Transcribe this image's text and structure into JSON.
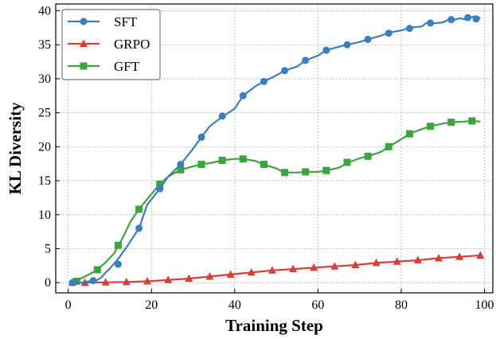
{
  "chart_data": {
    "type": "line",
    "title": "",
    "xlabel": "Training Step",
    "ylabel": "KL Diversity",
    "xlim": [
      -3,
      102
    ],
    "ylim": [
      -1.5,
      41
    ],
    "xticks": [
      0,
      20,
      40,
      60,
      80,
      100
    ],
    "yticks": [
      0,
      5,
      10,
      15,
      20,
      25,
      30,
      35,
      40
    ],
    "grid": true,
    "legend_position": "top-left",
    "series": [
      {
        "name": "SFT",
        "color": "#3a7ebf",
        "marker": "circle",
        "x": [
          1,
          2,
          3,
          4,
          5,
          6,
          7,
          8,
          9,
          10,
          12,
          14,
          17,
          19,
          22,
          24,
          27,
          30,
          32,
          34,
          37,
          40,
          42,
          45,
          47,
          50,
          52,
          55,
          57,
          60,
          62,
          65,
          67,
          70,
          72,
          75,
          77,
          80,
          82,
          85,
          86,
          87,
          90,
          91,
          93,
          94,
          95,
          96,
          97,
          98,
          99
        ],
        "y": [
          0.0,
          0.0,
          0.0,
          0.1,
          0.2,
          0.3,
          0.4,
          0.8,
          1.5,
          2.1,
          3.5,
          5.2,
          8.0,
          11.5,
          13.8,
          15.6,
          17.4,
          19.7,
          21.4,
          23.0,
          24.4,
          25.6,
          27.5,
          28.9,
          29.6,
          30.5,
          31.2,
          31.8,
          32.7,
          33.4,
          34.2,
          34.7,
          35.0,
          35.4,
          35.8,
          36.3,
          36.8,
          37.1,
          37.5,
          37.7,
          38.2,
          38.1,
          38.3,
          38.6,
          38.7,
          38.9,
          38.8,
          38.6,
          39.1,
          39.2,
          38.9
        ],
        "marker_points": [
          [
            1,
            0.0
          ],
          [
            6,
            0.3
          ],
          [
            12,
            2.7
          ],
          [
            17,
            8.0
          ],
          [
            22,
            13.8
          ],
          [
            27,
            17.4
          ],
          [
            32,
            21.4
          ],
          [
            37,
            24.5
          ],
          [
            42,
            27.5
          ],
          [
            47,
            29.6
          ],
          [
            52,
            31.2
          ],
          [
            57,
            32.7
          ],
          [
            62,
            34.2
          ],
          [
            67,
            35.0
          ],
          [
            72,
            35.8
          ],
          [
            77,
            36.7
          ],
          [
            82,
            37.4
          ],
          [
            87,
            38.2
          ],
          [
            92,
            38.7
          ],
          [
            96,
            39.0
          ],
          [
            98,
            38.8
          ]
        ]
      },
      {
        "name": "GRPO",
        "color": "#d43f3a",
        "marker": "triangle",
        "x": [
          1,
          4,
          9,
          14,
          19,
          24,
          29,
          34,
          39,
          44,
          49,
          54,
          59,
          64,
          69,
          74,
          79,
          84,
          89,
          94,
          99
        ],
        "y": [
          0.0,
          0.0,
          0.05,
          0.1,
          0.2,
          0.4,
          0.6,
          0.9,
          1.2,
          1.5,
          1.8,
          2.0,
          2.2,
          2.4,
          2.6,
          2.9,
          3.1,
          3.3,
          3.6,
          3.8,
          4.0
        ]
      },
      {
        "name": "GFT",
        "color": "#3aa43e",
        "marker": "square",
        "x": [
          1,
          3,
          5,
          7,
          9,
          11,
          13,
          15,
          17,
          19,
          22,
          24,
          27,
          30,
          32,
          35,
          37,
          40,
          42,
          45,
          47,
          50,
          52,
          55,
          57,
          60,
          62,
          65,
          67,
          70,
          72,
          75,
          77,
          80,
          82,
          85,
          87,
          90,
          92,
          95,
          97,
          99
        ],
        "y": [
          0.2,
          0.6,
          1.2,
          1.9,
          3.0,
          4.3,
          6.5,
          9.0,
          10.8,
          12.3,
          14.5,
          15.6,
          16.6,
          17.1,
          17.4,
          17.7,
          18.0,
          18.2,
          18.2,
          17.9,
          17.4,
          16.8,
          16.2,
          16.2,
          16.3,
          16.3,
          16.5,
          16.9,
          17.6,
          18.3,
          18.6,
          19.2,
          20.0,
          21.1,
          21.9,
          22.6,
          23.0,
          23.4,
          23.6,
          23.7,
          23.8,
          23.7
        ],
        "marker_points": [
          [
            2,
            0.2
          ],
          [
            7,
            1.9
          ],
          [
            12,
            5.5
          ],
          [
            17,
            10.8
          ],
          [
            22,
            14.5
          ],
          [
            27,
            16.6
          ],
          [
            32,
            17.4
          ],
          [
            37,
            18.0
          ],
          [
            42,
            18.2
          ],
          [
            47,
            17.4
          ],
          [
            52,
            16.2
          ],
          [
            57,
            16.3
          ],
          [
            62,
            16.5
          ],
          [
            67,
            17.7
          ],
          [
            72,
            18.6
          ],
          [
            77,
            20.0
          ],
          [
            82,
            21.9
          ],
          [
            87,
            23.0
          ],
          [
            92,
            23.6
          ],
          [
            97,
            23.8
          ]
        ]
      }
    ]
  }
}
